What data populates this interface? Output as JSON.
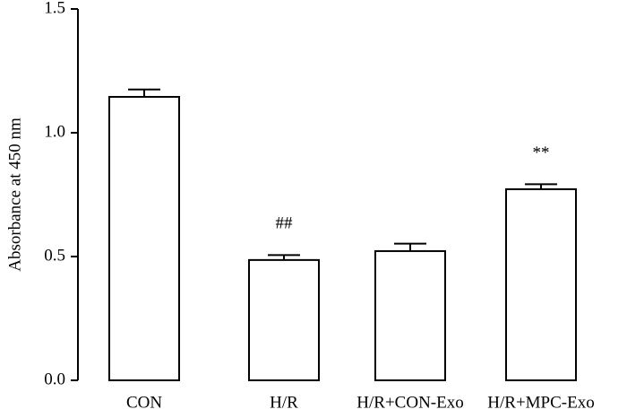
{
  "chart_data": {
    "type": "bar",
    "y_label": "Absorbance at 450 nm",
    "categories": [
      "CON",
      "H/R",
      "H/R+CON-Exo",
      "H/R+MPC-Exo"
    ],
    "values": [
      1.145,
      0.486,
      0.522,
      0.772
    ],
    "errors": [
      0.03,
      0.02,
      0.03,
      0.02
    ],
    "color": "#ffffff",
    "annotations": [
      {
        "category": "H/R",
        "text": "##"
      },
      {
        "category": "H/R+MPC-Exo",
        "text": "**"
      }
    ],
    "ylim": [
      0,
      1.5
    ],
    "yticks": [
      {
        "value": 0,
        "label": "0.0"
      },
      {
        "value": 0.5,
        "label": "0.5"
      },
      {
        "value": 1,
        "label": "1.0"
      },
      {
        "value": 1.5,
        "label": "1.5"
      }
    ],
    "grid": false
  }
}
